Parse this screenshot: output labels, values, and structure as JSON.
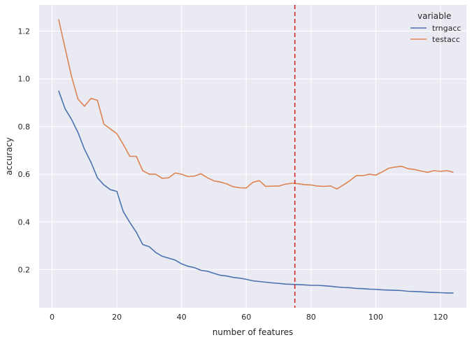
{
  "chart_data": {
    "type": "line",
    "xlabel": "number of features",
    "ylabel": "accuracy",
    "xlim": [
      -4,
      128
    ],
    "ylim": [
      0.04,
      1.31
    ],
    "xticks": [
      0,
      20,
      40,
      60,
      80,
      100,
      120
    ],
    "yticks": [
      0.2,
      0.4,
      0.6,
      0.8,
      1.0,
      1.2
    ],
    "ytick_labels": [
      "0.2",
      "0.4",
      "0.6",
      "0.8",
      "1.0",
      "1.2"
    ],
    "grid": true,
    "legend": {
      "title": "variable",
      "placement": "top-right"
    },
    "vline": {
      "x": 75,
      "color": "#d62728",
      "style": "dashed"
    },
    "x": [
      2,
      4,
      6,
      8,
      10,
      12,
      14,
      16,
      18,
      20,
      22,
      24,
      26,
      28,
      30,
      32,
      34,
      36,
      38,
      40,
      42,
      44,
      46,
      48,
      50,
      52,
      54,
      56,
      58,
      60,
      62,
      64,
      66,
      68,
      70,
      72,
      74,
      76,
      78,
      80,
      82,
      84,
      86,
      88,
      90,
      92,
      94,
      96,
      98,
      100,
      102,
      104,
      106,
      108,
      110,
      112,
      114,
      116,
      118,
      120,
      122,
      124
    ],
    "series": [
      {
        "name": "trngacc",
        "color": "#4c72b0",
        "values": [
          0.95,
          0.875,
          0.83,
          0.775,
          0.705,
          0.65,
          0.585,
          0.555,
          0.535,
          0.528,
          0.443,
          0.398,
          0.357,
          0.305,
          0.296,
          0.272,
          0.256,
          0.248,
          0.24,
          0.224,
          0.214,
          0.208,
          0.197,
          0.193,
          0.184,
          0.176,
          0.173,
          0.167,
          0.164,
          0.159,
          0.153,
          0.15,
          0.147,
          0.144,
          0.142,
          0.139,
          0.138,
          0.137,
          0.136,
          0.134,
          0.134,
          0.132,
          0.13,
          0.127,
          0.125,
          0.124,
          0.121,
          0.12,
          0.118,
          0.117,
          0.115,
          0.114,
          0.113,
          0.112,
          0.109,
          0.108,
          0.107,
          0.105,
          0.104,
          0.103,
          0.102,
          0.102
        ]
      },
      {
        "name": "testacc",
        "color": "#dd8452",
        "values": [
          1.25,
          1.13,
          1.01,
          0.915,
          0.885,
          0.918,
          0.91,
          0.81,
          0.79,
          0.77,
          0.725,
          0.675,
          0.675,
          0.615,
          0.6,
          0.6,
          0.583,
          0.585,
          0.605,
          0.6,
          0.59,
          0.592,
          0.602,
          0.585,
          0.572,
          0.567,
          0.559,
          0.547,
          0.543,
          0.542,
          0.566,
          0.573,
          0.549,
          0.55,
          0.55,
          0.558,
          0.562,
          0.56,
          0.556,
          0.555,
          0.55,
          0.549,
          0.551,
          0.538,
          0.555,
          0.573,
          0.594,
          0.594,
          0.6,
          0.596,
          0.61,
          0.625,
          0.63,
          0.633,
          0.623,
          0.62,
          0.613,
          0.608,
          0.615,
          0.612,
          0.615,
          0.608
        ]
      }
    ]
  }
}
